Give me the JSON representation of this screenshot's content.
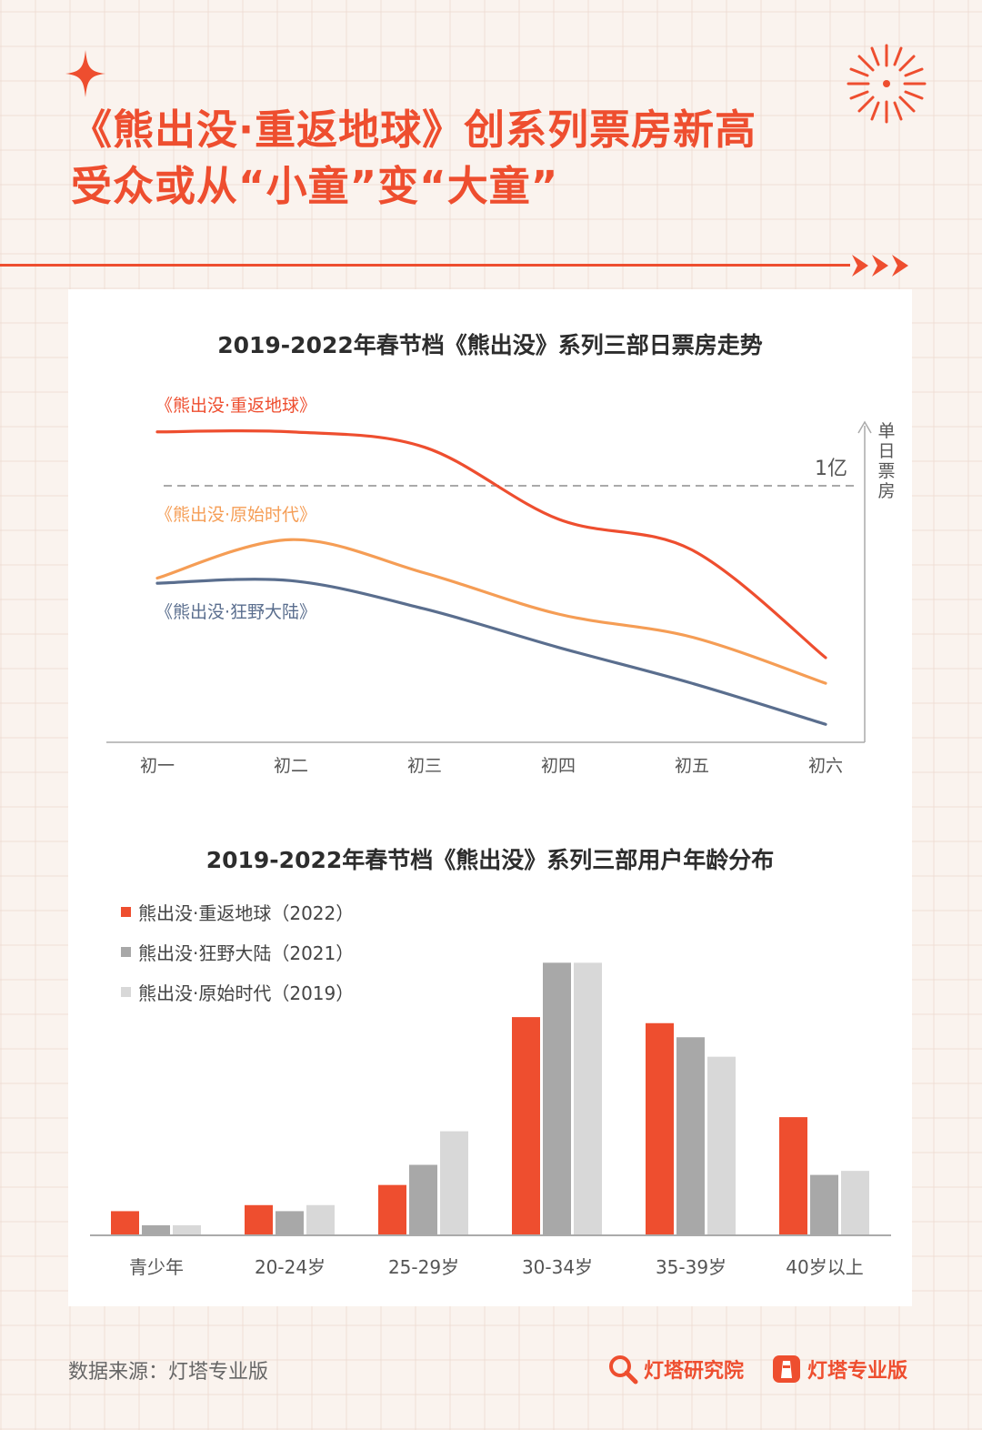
{
  "header": {
    "title_line1": "《熊出没·重返地球》创系列票房新高",
    "title_line2": "受众或从“小童”变“大童”"
  },
  "colors": {
    "accent": "#ee4e2f",
    "orange": "#f59d55",
    "blue": "#5a6e8e",
    "gray_dark": "#a8a8a8",
    "gray_light": "#d8d8d8"
  },
  "chart_data": [
    {
      "type": "line",
      "title": "2019-2022年春节档《熊出没》系列三部日票房走势",
      "categories": [
        "初一",
        "初二",
        "初三",
        "初四",
        "初五",
        "初六"
      ],
      "ylabel": "单日票房",
      "reference_line": {
        "value": 1.0,
        "label": "1亿"
      },
      "ylim": [
        0,
        1.5
      ],
      "series": [
        {
          "name": "《熊出没·重返地球》",
          "values": [
            1.21,
            1.21,
            1.15,
            0.87,
            0.75,
            0.33
          ]
        },
        {
          "name": "《熊出没·原始时代》",
          "values": [
            0.64,
            0.79,
            0.66,
            0.5,
            0.41,
            0.23
          ]
        },
        {
          "name": "《熊出没·狂野大陆》",
          "values": [
            0.62,
            0.63,
            0.52,
            0.37,
            0.23,
            0.07
          ]
        }
      ]
    },
    {
      "type": "bar",
      "title": "2019-2022年春节档《熊出没》系列三部用户年龄分布",
      "categories": [
        "青少年",
        "20-24岁",
        "25-29岁",
        "30-34岁",
        "35-39岁",
        "40岁以上"
      ],
      "series": [
        {
          "name": "熊出没·重返地球（2022）",
          "values": [
            3.6,
            4.5,
            7.5,
            32.5,
            31.6,
            17.6
          ]
        },
        {
          "name": "熊出没·狂野大陆（2021）",
          "values": [
            1.5,
            3.6,
            10.5,
            40.6,
            29.5,
            9.0
          ]
        },
        {
          "name": "熊出没·原始时代（2019）",
          "values": [
            1.5,
            4.5,
            15.5,
            40.6,
            26.6,
            9.6
          ]
        }
      ],
      "ylim": [
        0,
        42
      ]
    }
  ],
  "source": {
    "text": "数据来源：灯塔专业版"
  },
  "logos": {
    "research": "灯塔研究院",
    "pro": "灯塔专业版"
  }
}
